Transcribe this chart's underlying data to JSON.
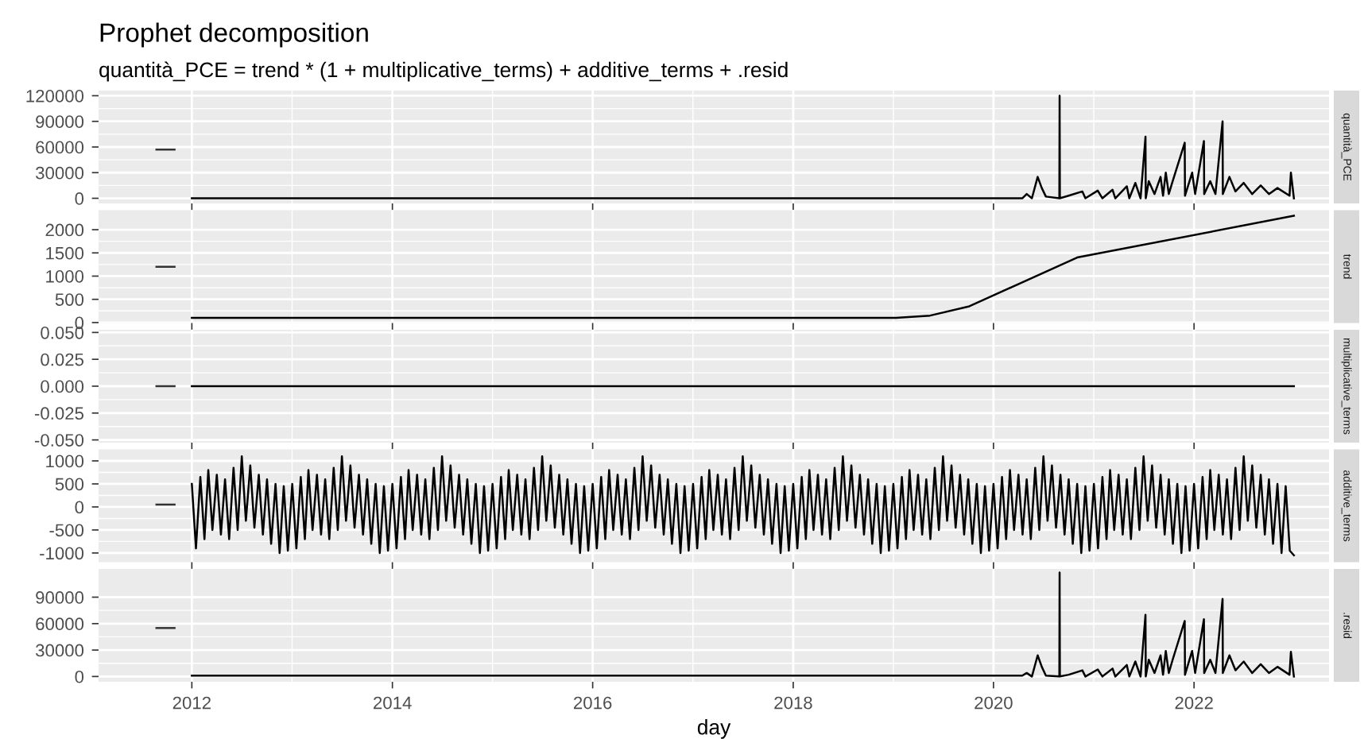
{
  "chart_data": [
    {
      "type": "line",
      "title": "Prophet decomposition",
      "subtitle": "quantità_PCE = trend * (1 + multiplicative_terms) + additive_terms + .resid",
      "ylabel": "quantità_PCE",
      "xlim": [
        "2011-01-26",
        "2023-05-08"
      ],
      "xticks": [
        {
          "value": "2012-01-01",
          "label": null
        },
        {
          "value": "2014-01-01",
          "label": null
        },
        {
          "value": "2016-01-01",
          "label": null
        },
        {
          "value": "2018-01-01",
          "label": null
        },
        {
          "value": "2020-01-01",
          "label": null
        },
        {
          "value": "2022-01-01",
          "label": null
        }
      ],
      "ylim": [
        -6000,
        126000
      ],
      "yticks": [
        0,
        30000,
        60000,
        90000,
        120000
      ],
      "tick_labels": "y",
      "grid": true,
      "series": [
        {
          "color": "#333333",
          "x": [
            "2011-08-25",
            "2011-10-30"
          ],
          "values": [
            57000,
            57000
          ]
        },
        {
          "color": "#000000",
          "x": [
            "2012-01-01",
            "2020-04-15",
            "2020-05-01",
            "2020-05-20",
            "2020-06-10",
            "2020-06-25",
            "2020-07-10",
            "2020-08-28",
            "2020-08-29",
            "2020-08-30",
            "2020-10-01",
            "2020-11-20",
            "2020-12-01",
            "2021-01-15",
            "2021-02-01",
            "2021-03-10",
            "2021-03-20",
            "2021-05-01",
            "2021-05-10",
            "2021-06-01",
            "2021-06-20",
            "2021-07-08",
            "2021-07-09",
            "2021-07-20",
            "2021-08-10",
            "2021-09-01",
            "2021-09-10",
            "2021-09-20",
            "2021-10-01",
            "2021-10-15",
            "2021-11-28",
            "2021-11-29",
            "2021-12-25",
            "2022-01-05",
            "2022-02-06",
            "2022-02-07",
            "2022-03-01",
            "2022-03-20",
            "2022-04-15",
            "2022-04-16",
            "2022-05-10",
            "2022-06-01",
            "2022-07-01",
            "2022-08-01",
            "2022-09-01",
            "2022-10-01",
            "2022-11-01",
            "2022-12-15",
            "2022-12-20",
            "2022-12-31"
          ],
          "values": [
            0,
            0,
            5000,
            0,
            25000,
            12000,
            2000,
            0,
            120000,
            0,
            3000,
            8000,
            0,
            9000,
            0,
            10000,
            0,
            14000,
            0,
            18000,
            0,
            72000,
            0,
            20000,
            5000,
            25000,
            3000,
            30000,
            5000,
            20000,
            65000,
            3000,
            30000,
            5000,
            67000,
            5000,
            20000,
            5000,
            90000,
            5000,
            25000,
            8000,
            18000,
            5000,
            15000,
            5000,
            12000,
            3000,
            30000,
            0
          ]
        }
      ]
    },
    {
      "type": "line",
      "ylabel": "trend",
      "xlim": [
        "2011-01-26",
        "2023-05-08"
      ],
      "xticks": [
        {
          "value": "2012-01-01",
          "label": null
        },
        {
          "value": "2014-01-01",
          "label": null
        },
        {
          "value": "2016-01-01",
          "label": null
        },
        {
          "value": "2018-01-01",
          "label": null
        },
        {
          "value": "2020-01-01",
          "label": null
        },
        {
          "value": "2022-01-01",
          "label": null
        }
      ],
      "ylim": [
        -10,
        2420
      ],
      "yticks": [
        0,
        500,
        1000,
        1500,
        2000
      ],
      "tick_labels": "y",
      "grid": true,
      "series": [
        {
          "color": "#333333",
          "x": [
            "2011-08-25",
            "2011-10-30"
          ],
          "values": [
            1200,
            1200
          ]
        },
        {
          "color": "#000000",
          "x": [
            "2012-01-01",
            "2019-01-10",
            "2019-05-15",
            "2019-10-05",
            "2020-11-01",
            "2022-12-31"
          ],
          "values": [
            100,
            100,
            150,
            350,
            1400,
            2300
          ]
        }
      ]
    },
    {
      "type": "line",
      "ylabel": "multiplicative_terms",
      "xlim": [
        "2011-01-26",
        "2023-05-08"
      ],
      "xticks": [
        {
          "value": "2012-01-01",
          "label": null
        },
        {
          "value": "2014-01-01",
          "label": null
        },
        {
          "value": "2016-01-01",
          "label": null
        },
        {
          "value": "2018-01-01",
          "label": null
        },
        {
          "value": "2020-01-01",
          "label": null
        },
        {
          "value": "2022-01-01",
          "label": null
        }
      ],
      "ylim": [
        -0.0525,
        0.0525
      ],
      "yticks": [
        {
          "value": -0.05,
          "label": "-0.050"
        },
        {
          "value": -0.025,
          "label": "-0.025"
        },
        {
          "value": 0,
          "label": "0.000"
        },
        {
          "value": 0.025,
          "label": "0.025"
        },
        {
          "value": 0.05,
          "label": "0.050"
        }
      ],
      "tick_labels": "y",
      "grid": true,
      "series": [
        {
          "color": "#333333",
          "x": [
            "2011-08-25",
            "2011-10-30"
          ],
          "values": [
            0,
            0
          ]
        },
        {
          "color": "#000000",
          "x": [
            "2012-01-01",
            "2022-12-31"
          ],
          "values": [
            0,
            0
          ]
        }
      ]
    },
    {
      "type": "line",
      "ylabel": "additive_terms",
      "xlim": [
        "2011-01-26",
        "2023-05-08"
      ],
      "xticks": [
        {
          "value": "2012-01-01",
          "label": null
        },
        {
          "value": "2014-01-01",
          "label": null
        },
        {
          "value": "2016-01-01",
          "label": null
        },
        {
          "value": "2018-01-01",
          "label": null
        },
        {
          "value": "2020-01-01",
          "label": null
        },
        {
          "value": "2022-01-01",
          "label": null
        }
      ],
      "ylim": [
        -1200,
        1250
      ],
      "yticks": [
        -1000,
        -500,
        0,
        500,
        1000
      ],
      "tick_labels": "y",
      "grid": true,
      "series": [
        {
          "color": "#333333",
          "x": [
            "2011-08-25",
            "2011-10-30"
          ],
          "values": [
            50,
            50
          ]
        },
        {
          "color": "#000000",
          "x": [
            "2012-01-01",
            "2012-01-16",
            "2012-02-01",
            "2012-02-16",
            "2012-03-01",
            "2012-03-16",
            "2012-04-01",
            "2012-04-16",
            "2012-05-01",
            "2012-05-16",
            "2012-06-01",
            "2012-06-16",
            "2012-07-01",
            "2012-07-16",
            "2012-08-01",
            "2012-08-16",
            "2012-09-01",
            "2012-09-16",
            "2012-10-01",
            "2012-10-16",
            "2012-11-01",
            "2012-11-16",
            "2012-12-01",
            "2012-12-16",
            "2013-01-01",
            "2013-01-16",
            "2013-02-01",
            "2013-02-16",
            "2013-03-01",
            "2013-03-16",
            "2013-04-01",
            "2013-04-16",
            "2013-05-01",
            "2013-05-16",
            "2013-06-01",
            "2013-06-16",
            "2013-07-01",
            "2013-07-16",
            "2013-08-01",
            "2013-08-16",
            "2013-09-01",
            "2013-09-16",
            "2013-10-01",
            "2013-10-16",
            "2013-11-01",
            "2013-11-16",
            "2013-12-01",
            "2013-12-16",
            "2014-01-01",
            "2014-01-16",
            "2014-02-01",
            "2014-02-16",
            "2014-03-01",
            "2014-03-16",
            "2014-04-01",
            "2014-04-16",
            "2014-05-01",
            "2014-05-16",
            "2014-06-01",
            "2014-06-16",
            "2014-07-01",
            "2014-07-16",
            "2014-08-01",
            "2014-08-16",
            "2014-09-01",
            "2014-09-16",
            "2014-10-01",
            "2014-10-16",
            "2014-11-01",
            "2014-11-16",
            "2014-12-01",
            "2014-12-16",
            "2015-01-01",
            "2015-01-16",
            "2015-02-01",
            "2015-02-16",
            "2015-03-01",
            "2015-03-16",
            "2015-04-01",
            "2015-04-16",
            "2015-05-01",
            "2015-05-16",
            "2015-06-01",
            "2015-06-16",
            "2015-07-01",
            "2015-07-16",
            "2015-08-01",
            "2015-08-16",
            "2015-09-01",
            "2015-09-16",
            "2015-10-01",
            "2015-10-16",
            "2015-11-01",
            "2015-11-16",
            "2015-12-01",
            "2015-12-16",
            "2016-01-01",
            "2016-01-16",
            "2016-02-01",
            "2016-02-16",
            "2016-03-01",
            "2016-03-16",
            "2016-04-01",
            "2016-04-16",
            "2016-05-01",
            "2016-05-16",
            "2016-06-01",
            "2016-06-16",
            "2016-07-01",
            "2016-07-16",
            "2016-08-01",
            "2016-08-16",
            "2016-09-01",
            "2016-09-16",
            "2016-10-01",
            "2016-10-16",
            "2016-11-01",
            "2016-11-16",
            "2016-12-01",
            "2016-12-16",
            "2017-01-01",
            "2017-01-16",
            "2017-02-01",
            "2017-02-16",
            "2017-03-01",
            "2017-03-16",
            "2017-04-01",
            "2017-04-16",
            "2017-05-01",
            "2017-05-16",
            "2017-06-01",
            "2017-06-16",
            "2017-07-01",
            "2017-07-16",
            "2017-08-01",
            "2017-08-16",
            "2017-09-01",
            "2017-09-16",
            "2017-10-01",
            "2017-10-16",
            "2017-11-01",
            "2017-11-16",
            "2017-12-01",
            "2017-12-16",
            "2018-01-01",
            "2018-01-16",
            "2018-02-01",
            "2018-02-16",
            "2018-03-01",
            "2018-03-16",
            "2018-04-01",
            "2018-04-16",
            "2018-05-01",
            "2018-05-16",
            "2018-06-01",
            "2018-06-16",
            "2018-07-01",
            "2018-07-16",
            "2018-08-01",
            "2018-08-16",
            "2018-09-01",
            "2018-09-16",
            "2018-10-01",
            "2018-10-16",
            "2018-11-01",
            "2018-11-16",
            "2018-12-01",
            "2018-12-16",
            "2019-01-01",
            "2019-01-16",
            "2019-02-01",
            "2019-02-16",
            "2019-03-01",
            "2019-03-16",
            "2019-04-01",
            "2019-04-16",
            "2019-05-01",
            "2019-05-16",
            "2019-06-01",
            "2019-06-16",
            "2019-07-01",
            "2019-07-16",
            "2019-08-01",
            "2019-08-16",
            "2019-09-01",
            "2019-09-16",
            "2019-10-01",
            "2019-10-16",
            "2019-11-01",
            "2019-11-16",
            "2019-12-01",
            "2019-12-16",
            "2020-01-01",
            "2020-01-16",
            "2020-02-01",
            "2020-02-16",
            "2020-03-01",
            "2020-03-16",
            "2020-04-01",
            "2020-04-16",
            "2020-05-01",
            "2020-05-16",
            "2020-06-01",
            "2020-06-16",
            "2020-07-01",
            "2020-07-16",
            "2020-08-01",
            "2020-08-16",
            "2020-09-01",
            "2020-09-16",
            "2020-10-01",
            "2020-10-16",
            "2020-11-01",
            "2020-11-16",
            "2020-12-01",
            "2020-12-16",
            "2021-01-01",
            "2021-01-16",
            "2021-02-01",
            "2021-02-16",
            "2021-03-01",
            "2021-03-16",
            "2021-04-01",
            "2021-04-16",
            "2021-05-01",
            "2021-05-16",
            "2021-06-01",
            "2021-06-16",
            "2021-07-01",
            "2021-07-16",
            "2021-08-01",
            "2021-08-16",
            "2021-09-01",
            "2021-09-16",
            "2021-10-01",
            "2021-10-16",
            "2021-11-01",
            "2021-11-16",
            "2021-12-01",
            "2021-12-16",
            "2022-01-01",
            "2022-01-16",
            "2022-02-01",
            "2022-02-16",
            "2022-03-01",
            "2022-03-16",
            "2022-04-01",
            "2022-04-16",
            "2022-05-01",
            "2022-05-16",
            "2022-06-01",
            "2022-06-16",
            "2022-07-01",
            "2022-07-16",
            "2022-08-01",
            "2022-08-16",
            "2022-09-01",
            "2022-09-16",
            "2022-10-01",
            "2022-10-16",
            "2022-11-01",
            "2022-11-16",
            "2022-12-01",
            "2022-12-16",
            "2022-12-31"
          ],
          "values": [
            500,
            -900,
            650,
            -700,
            800,
            -500,
            700,
            -600,
            600,
            -700,
            850,
            -500,
            1100,
            -300,
            900,
            -450,
            700,
            -600,
            600,
            -800,
            500,
            -1000,
            450,
            -950,
            500,
            -900,
            650,
            -700,
            800,
            -500,
            700,
            -600,
            600,
            -700,
            850,
            -500,
            1100,
            -300,
            900,
            -450,
            700,
            -600,
            600,
            -800,
            500,
            -1000,
            450,
            -950,
            500,
            -900,
            650,
            -700,
            800,
            -500,
            700,
            -600,
            600,
            -700,
            850,
            -500,
            1100,
            -300,
            900,
            -450,
            700,
            -600,
            600,
            -800,
            500,
            -1000,
            450,
            -950,
            500,
            -900,
            650,
            -700,
            800,
            -500,
            700,
            -600,
            600,
            -700,
            850,
            -500,
            1100,
            -300,
            900,
            -450,
            700,
            -600,
            600,
            -800,
            500,
            -1000,
            450,
            -950,
            500,
            -900,
            650,
            -700,
            800,
            -500,
            700,
            -600,
            600,
            -700,
            850,
            -500,
            1100,
            -300,
            900,
            -450,
            700,
            -600,
            600,
            -800,
            500,
            -1000,
            450,
            -950,
            500,
            -900,
            650,
            -700,
            800,
            -500,
            700,
            -600,
            600,
            -700,
            850,
            -500,
            1100,
            -300,
            900,
            -450,
            700,
            -600,
            600,
            -800,
            500,
            -1000,
            450,
            -950,
            500,
            -900,
            650,
            -700,
            800,
            -500,
            700,
            -600,
            600,
            -700,
            850,
            -500,
            1100,
            -300,
            900,
            -450,
            700,
            -600,
            600,
            -800,
            500,
            -1000,
            450,
            -950,
            500,
            -900,
            650,
            -700,
            800,
            -500,
            700,
            -600,
            600,
            -700,
            850,
            -500,
            1100,
            -300,
            900,
            -450,
            700,
            -600,
            600,
            -800,
            500,
            -1000,
            450,
            -950,
            500,
            -900,
            650,
            -700,
            800,
            -500,
            700,
            -600,
            600,
            -700,
            850,
            -500,
            1100,
            -300,
            900,
            -450,
            700,
            -600,
            600,
            -800,
            500,
            -1000,
            450,
            -950,
            500,
            -900,
            650,
            -700,
            800,
            -500,
            700,
            -600,
            600,
            -700,
            850,
            -500,
            1100,
            -300,
            900,
            -450,
            700,
            -600,
            600,
            -800,
            500,
            -1000,
            450,
            -950,
            500,
            -900,
            650,
            -700,
            800,
            -500,
            700,
            -600,
            600,
            -700,
            850,
            -500,
            1100,
            -300,
            900,
            -450,
            700,
            -600,
            600,
            -800,
            500,
            -1000,
            450,
            -950,
            -1050
          ]
        }
      ]
    },
    {
      "type": "line",
      "ylabel": ".resid",
      "xlabel": "day",
      "xlim": [
        "2011-01-26",
        "2023-05-08"
      ],
      "xticks": [
        {
          "value": "2012-01-01",
          "label": "2012"
        },
        {
          "value": "2014-01-01",
          "label": "2014"
        },
        {
          "value": "2016-01-01",
          "label": "2016"
        },
        {
          "value": "2018-01-01",
          "label": "2018"
        },
        {
          "value": "2020-01-01",
          "label": "2020"
        },
        {
          "value": "2022-01-01",
          "label": "2022"
        }
      ],
      "ylim": [
        -6000,
        122000
      ],
      "yticks": [
        0,
        30000,
        60000,
        90000
      ],
      "grid": true,
      "series": [
        {
          "color": "#333333",
          "x": [
            "2011-08-25",
            "2011-10-30"
          ],
          "values": [
            55000,
            55000
          ]
        },
        {
          "color": "#000000",
          "x": [
            "2012-01-01",
            "2020-04-15",
            "2020-05-01",
            "2020-05-20",
            "2020-06-10",
            "2020-06-25",
            "2020-07-10",
            "2020-08-28",
            "2020-08-29",
            "2020-08-30",
            "2020-10-01",
            "2020-11-20",
            "2020-12-01",
            "2021-01-15",
            "2021-02-01",
            "2021-03-10",
            "2021-03-20",
            "2021-05-01",
            "2021-05-10",
            "2021-06-01",
            "2021-06-20",
            "2021-07-08",
            "2021-07-09",
            "2021-07-20",
            "2021-08-10",
            "2021-09-01",
            "2021-09-10",
            "2021-09-20",
            "2021-10-01",
            "2021-10-15",
            "2021-11-28",
            "2021-11-29",
            "2021-12-25",
            "2022-01-05",
            "2022-02-06",
            "2022-02-07",
            "2022-03-01",
            "2022-03-20",
            "2022-04-15",
            "2022-04-16",
            "2022-05-10",
            "2022-06-01",
            "2022-07-01",
            "2022-08-01",
            "2022-09-01",
            "2022-10-01",
            "2022-11-01",
            "2022-12-15",
            "2022-12-20",
            "2022-12-31"
          ],
          "values": [
            1000,
            1000,
            4000,
            0,
            24000,
            11000,
            1000,
            0,
            118000,
            0,
            2000,
            7000,
            0,
            8000,
            0,
            9000,
            0,
            13000,
            0,
            17000,
            0,
            70000,
            0,
            19000,
            4000,
            24000,
            2000,
            29000,
            4000,
            19000,
            63000,
            2000,
            29000,
            4000,
            65000,
            4000,
            19000,
            4000,
            88000,
            4000,
            24000,
            7000,
            17000,
            4000,
            14000,
            4000,
            11000,
            2000,
            28000,
            0
          ]
        }
      ]
    }
  ]
}
